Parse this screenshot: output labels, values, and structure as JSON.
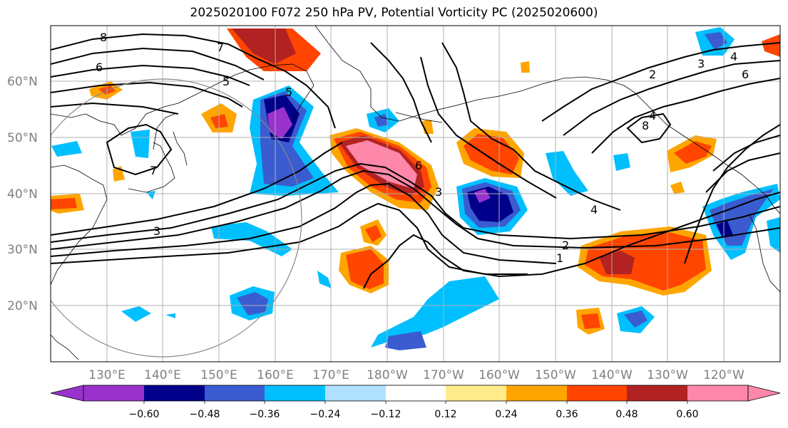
{
  "title": "2025020100 F072 250 hPa PV, Potential Vorticity PC (2025020600)",
  "map": {
    "lon_labels": [
      "130°E",
      "140°E",
      "150°E",
      "160°E",
      "170°E",
      "180°W",
      "170°W",
      "160°W",
      "150°W",
      "140°W",
      "130°W",
      "120°W"
    ],
    "lat_labels": [
      "60°N",
      "50°N",
      "40°N",
      "30°N",
      "20°N"
    ],
    "contour_labels": [
      "8",
      "7",
      "6",
      "5",
      "7",
      "3",
      "6",
      "5",
      "4",
      "3",
      "2",
      "1",
      "2",
      "3",
      "4",
      "6",
      "8",
      "4"
    ]
  },
  "colorbar": {
    "colors": [
      "#9932CC",
      "#00008B",
      "#3A5CD0",
      "#00BFFF",
      "#B0E0FF",
      "#FFFFFF",
      "#FFEB8A",
      "#FFA500",
      "#FF4500",
      "#B22222",
      "#FF88AA"
    ],
    "labels": [
      "−0.60",
      "−0.48",
      "−0.36",
      "−0.24",
      "−0.12",
      "0.12",
      "0.24",
      "0.36",
      "0.48",
      "0.60"
    ]
  },
  "colors": {
    "grid": "#b0b0b0",
    "contour": "#000000",
    "ticks": "#808080"
  }
}
